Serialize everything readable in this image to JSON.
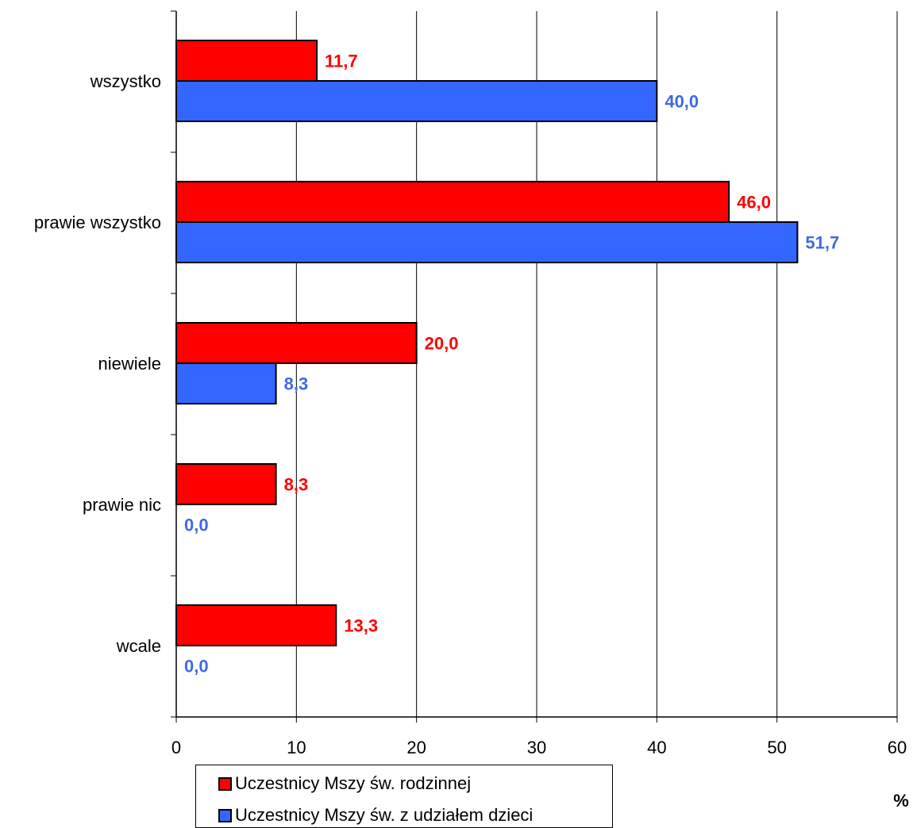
{
  "chart_data": {
    "type": "bar",
    "orientation": "horizontal",
    "categories": [
      "wszystko",
      "prawie wszystko",
      "niewiele",
      "prawie nic",
      "wcale"
    ],
    "series": [
      {
        "name": "Uczestnicy Mszy św. rodzinnej",
        "values": [
          11.7,
          46.0,
          20.0,
          8.3,
          13.3
        ],
        "labels": [
          "11,7",
          "46,0",
          "20,0",
          "8,3",
          "13,3"
        ],
        "color": "#ff0000",
        "label_color": "#ff0000"
      },
      {
        "name": "Uczestnicy Mszy św. z udziałem dzieci",
        "values": [
          40.0,
          51.7,
          8.3,
          0.0,
          0.0
        ],
        "labels": [
          "40,0",
          "51,7",
          "8,3",
          "0,0",
          "0,0"
        ],
        "color": "#3366ff",
        "label_color": "#4169e1"
      }
    ],
    "xlim": [
      0,
      60
    ],
    "xticks": [
      0,
      10,
      20,
      30,
      40,
      50,
      60
    ],
    "unit_label": "%",
    "grid": "vertical",
    "legend_position": "bottom"
  }
}
